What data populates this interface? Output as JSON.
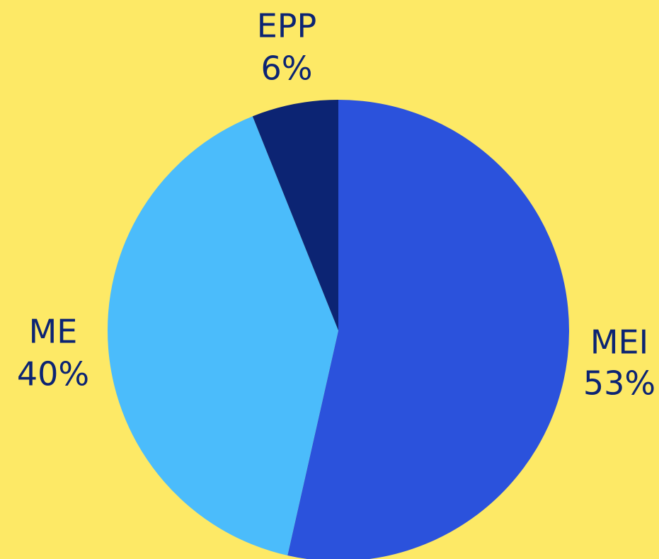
{
  "chart_data": {
    "type": "pie",
    "categories": [
      "MEI",
      "ME",
      "EPP"
    ],
    "values": [
      53,
      40,
      6
    ],
    "value_labels": [
      "53%",
      "40%",
      "6%"
    ],
    "colors": [
      "#2b52dc",
      "#4bbcfb",
      "#0c2473"
    ]
  }
}
